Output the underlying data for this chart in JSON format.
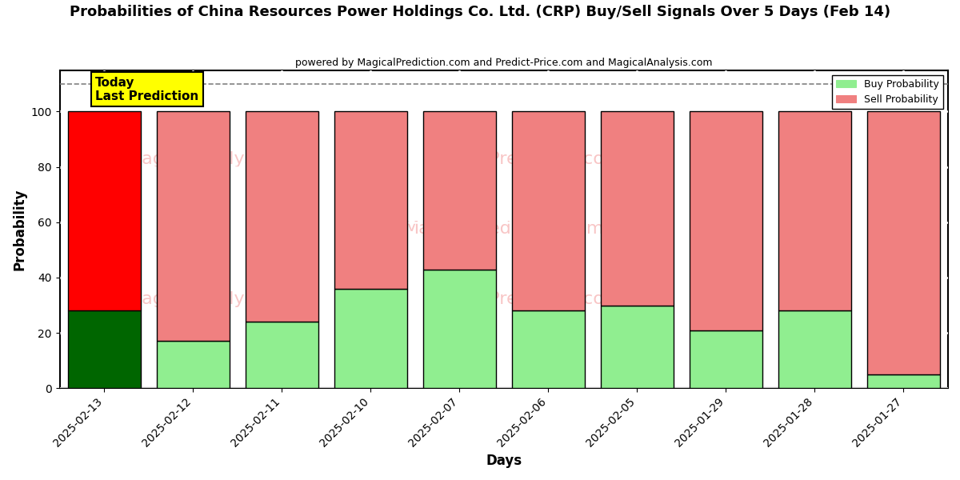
{
  "title": "Probabilities of China Resources Power Holdings Co. Ltd. (CRP) Buy/Sell Signals Over 5 Days (Feb 14)",
  "subtitle": "powered by MagicalPrediction.com and Predict-Price.com and MagicalAnalysis.com",
  "xlabel": "Days",
  "ylabel": "Probability",
  "categories": [
    "2025-02-13",
    "2025-02-12",
    "2025-02-11",
    "2025-02-10",
    "2025-02-07",
    "2025-02-06",
    "2025-02-05",
    "2025-01-29",
    "2025-01-28",
    "2025-01-27"
  ],
  "buy_values": [
    28,
    17,
    24,
    36,
    43,
    28,
    30,
    21,
    28,
    5
  ],
  "sell_values": [
    72,
    83,
    76,
    64,
    57,
    72,
    70,
    79,
    72,
    95
  ],
  "buy_color_today": "#006600",
  "sell_color_today": "#ff0000",
  "buy_color_normal": "#90ee90",
  "sell_color_normal": "#f08080",
  "bar_edgecolor": "black",
  "bar_linewidth": 1.0,
  "today_annotation_text": "Today\nLast Prediction",
  "today_annotation_bg": "#ffff00",
  "watermark_color": "#f08080",
  "watermark_alpha": 0.45,
  "dashed_line_y": 110,
  "dashed_line_color": "gray",
  "dashed_line_style": "--",
  "ylim": [
    0,
    115
  ],
  "yticks": [
    0,
    20,
    40,
    60,
    80,
    100
  ],
  "grid_color": "white",
  "background_color": "#ffffff",
  "legend_buy_label": "Buy Probability",
  "legend_sell_label": "Sell Probability"
}
